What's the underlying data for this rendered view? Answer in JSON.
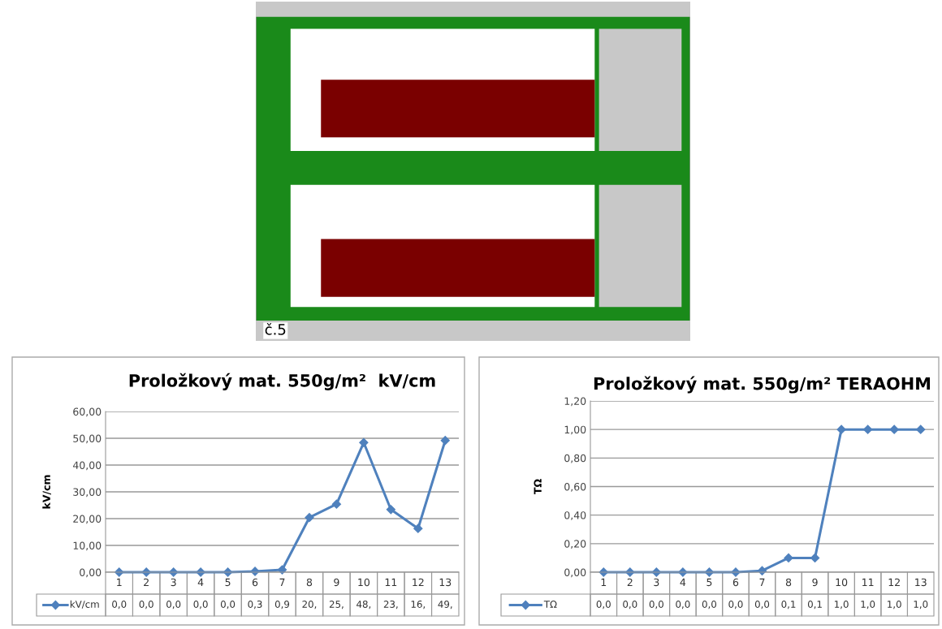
{
  "chart_data": [
    {
      "type": "other",
      "annotations": [
        "č.5"
      ]
    },
    {
      "type": "line",
      "title": "Proložkový mat. 550g/m²  kV/cm",
      "ylabel": "kV/cm",
      "categories": [
        "1",
        "2",
        "3",
        "4",
        "5",
        "6",
        "7",
        "8",
        "9",
        "10",
        "11",
        "12",
        "13"
      ],
      "series": [
        {
          "name": "kV/cm",
          "color": "#4f81bd",
          "values": [
            0,
            0,
            0,
            0,
            0,
            0.3,
            0.9,
            20.4,
            25.4,
            48.4,
            23.4,
            16.3,
            49.2
          ],
          "value_labels": [
            "0,0",
            "0,0",
            "0,0",
            "0,0",
            "0,0",
            "0,3",
            "0,9",
            "20,",
            "25,",
            "48,",
            "23,",
            "16,",
            "49,"
          ]
        }
      ],
      "ylim": [
        0,
        60
      ],
      "yticks": [
        {
          "value": 0,
          "label": "0,00"
        },
        {
          "value": 10,
          "label": "10,00"
        },
        {
          "value": 20,
          "label": "20,00"
        },
        {
          "value": 30,
          "label": "30,00"
        },
        {
          "value": 40,
          "label": "40,00"
        },
        {
          "value": 50,
          "label": "50,00"
        },
        {
          "value": 60,
          "label": "60,00"
        }
      ],
      "grid": "y",
      "legend": "bottom",
      "marker": "diamond",
      "line_style": "solid"
    },
    {
      "type": "line",
      "title": "Proložkový mat. 550g/m² TERAOHM",
      "ylabel": "TΩ",
      "categories": [
        "1",
        "2",
        "3",
        "4",
        "5",
        "6",
        "7",
        "8",
        "9",
        "10",
        "11",
        "12",
        "13"
      ],
      "series": [
        {
          "name": "TΩ",
          "color": "#4f81bd",
          "values": [
            0,
            0,
            0,
            0,
            0,
            0,
            0.01,
            0.1,
            0.1,
            1.0,
            1.0,
            1.0,
            1.0
          ],
          "value_labels": [
            "0,0",
            "0,0",
            "0,0",
            "0,0",
            "0,0",
            "0,0",
            "0,0",
            "0,1",
            "0,1",
            "1,0",
            "1,0",
            "1,0",
            "1,0"
          ]
        }
      ],
      "ylim": [
        0,
        1.2
      ],
      "yticks": [
        {
          "value": 0,
          "label": "0,00"
        },
        {
          "value": 0.2,
          "label": "0,20"
        },
        {
          "value": 0.4,
          "label": "0,40"
        },
        {
          "value": 0.6,
          "label": "0,60"
        },
        {
          "value": 0.8,
          "label": "0,80"
        },
        {
          "value": 1.0,
          "label": "1,00"
        },
        {
          "value": 1.2,
          "label": "1,20"
        }
      ],
      "grid": "y",
      "legend": "bottom",
      "marker": "diamond",
      "line_style": "solid"
    }
  ]
}
